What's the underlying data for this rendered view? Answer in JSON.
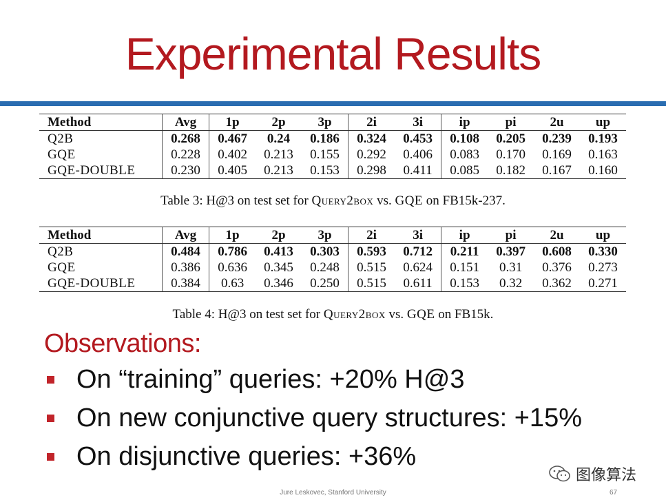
{
  "slide": {
    "title": "Experimental Results",
    "observations_heading": "Observations:",
    "bullets": [
      "On “training” queries: +20% H@3",
      "On new conjunctive query structures: +15%",
      "On disjunctive queries: +36%"
    ],
    "footer": "Jure Leskovec, Stanford University",
    "page_number": "67",
    "watermark": "图像算法",
    "colors": {
      "title_red": "#b3191f",
      "rule_blue": "#2a6db1",
      "bullet_red": "#c1242a"
    }
  },
  "tables": [
    {
      "headers": [
        "Method",
        "Avg",
        "1p",
        "2p",
        "3p",
        "2i",
        "3i",
        "ip",
        "pi",
        "2u",
        "up"
      ],
      "rows": [
        [
          "Q2B",
          "0.268",
          "0.467",
          "0.24",
          "0.186",
          "0.324",
          "0.453",
          "0.108",
          "0.205",
          "0.239",
          "0.193"
        ],
        [
          "GQE",
          "0.228",
          "0.402",
          "0.213",
          "0.155",
          "0.292",
          "0.406",
          "0.083",
          "0.170",
          "0.169",
          "0.163"
        ],
        [
          "GQE-DOUBLE",
          "0.230",
          "0.405",
          "0.213",
          "0.153",
          "0.298",
          "0.411",
          "0.085",
          "0.182",
          "0.167",
          "0.160"
        ]
      ],
      "caption": {
        "a": "Table 3: H@3 on test set for ",
        "b": "Query2box",
        "c": " vs. ",
        "d": "GQE",
        "e": " on FB15k-237."
      }
    },
    {
      "headers": [
        "Method",
        "Avg",
        "1p",
        "2p",
        "3p",
        "2i",
        "3i",
        "ip",
        "pi",
        "2u",
        "up"
      ],
      "rows": [
        [
          "Q2B",
          "0.484",
          "0.786",
          "0.413",
          "0.303",
          "0.593",
          "0.712",
          "0.211",
          "0.397",
          "0.608",
          "0.330"
        ],
        [
          "GQE",
          "0.386",
          "0.636",
          "0.345",
          "0.248",
          "0.515",
          "0.624",
          "0.151",
          "0.31",
          "0.376",
          "0.273"
        ],
        [
          "GQE-DOUBLE",
          "0.384",
          "0.63",
          "0.346",
          "0.250",
          "0.515",
          "0.611",
          "0.153",
          "0.32",
          "0.362",
          "0.271"
        ]
      ],
      "caption": {
        "a": "Table 4: H@3 on test set for ",
        "b": "Query2box",
        "c": " vs. ",
        "d": "GQE",
        "e": " on FB15k."
      }
    }
  ]
}
